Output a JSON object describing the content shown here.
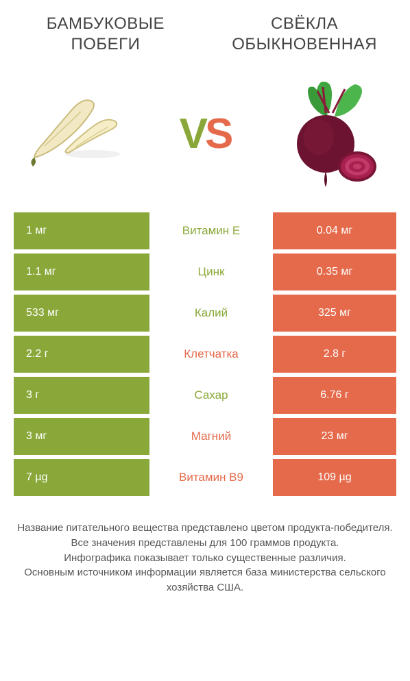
{
  "left_title": "БАМБУКОВЫЕ ПОБЕГИ",
  "right_title": "СВЁКЛА ОБЫКНОВЕННАЯ",
  "vs_left_letter": "V",
  "vs_right_letter": "S",
  "colors": {
    "left": "#8aa83a",
    "right": "#e56a4b",
    "bg": "#ffffff"
  },
  "rows": [
    {
      "left": "1 мг",
      "label": "Витамин E",
      "right": "0.04 мг",
      "winner": "left"
    },
    {
      "left": "1.1 мг",
      "label": "Цинк",
      "right": "0.35 мг",
      "winner": "left"
    },
    {
      "left": "533 мг",
      "label": "Калий",
      "right": "325 мг",
      "winner": "left"
    },
    {
      "left": "2.2 г",
      "label": "Клетчатка",
      "right": "2.8 г",
      "winner": "right"
    },
    {
      "left": "3 г",
      "label": "Сахар",
      "right": "6.76 г",
      "winner": "left"
    },
    {
      "left": "3 мг",
      "label": "Магний",
      "right": "23 мг",
      "winner": "right"
    },
    {
      "left": "7 µg",
      "label": "Витамин B9",
      "right": "109 µg",
      "winner": "right"
    }
  ],
  "footnote_lines": [
    "Название питательного вещества представлено цветом продукта-победителя.",
    "Все значения представлены для 100 граммов продукта.",
    "Инфографика показывает только существенные различия.",
    "Основным источником информации является база министерства сельского хозяйства США."
  ]
}
